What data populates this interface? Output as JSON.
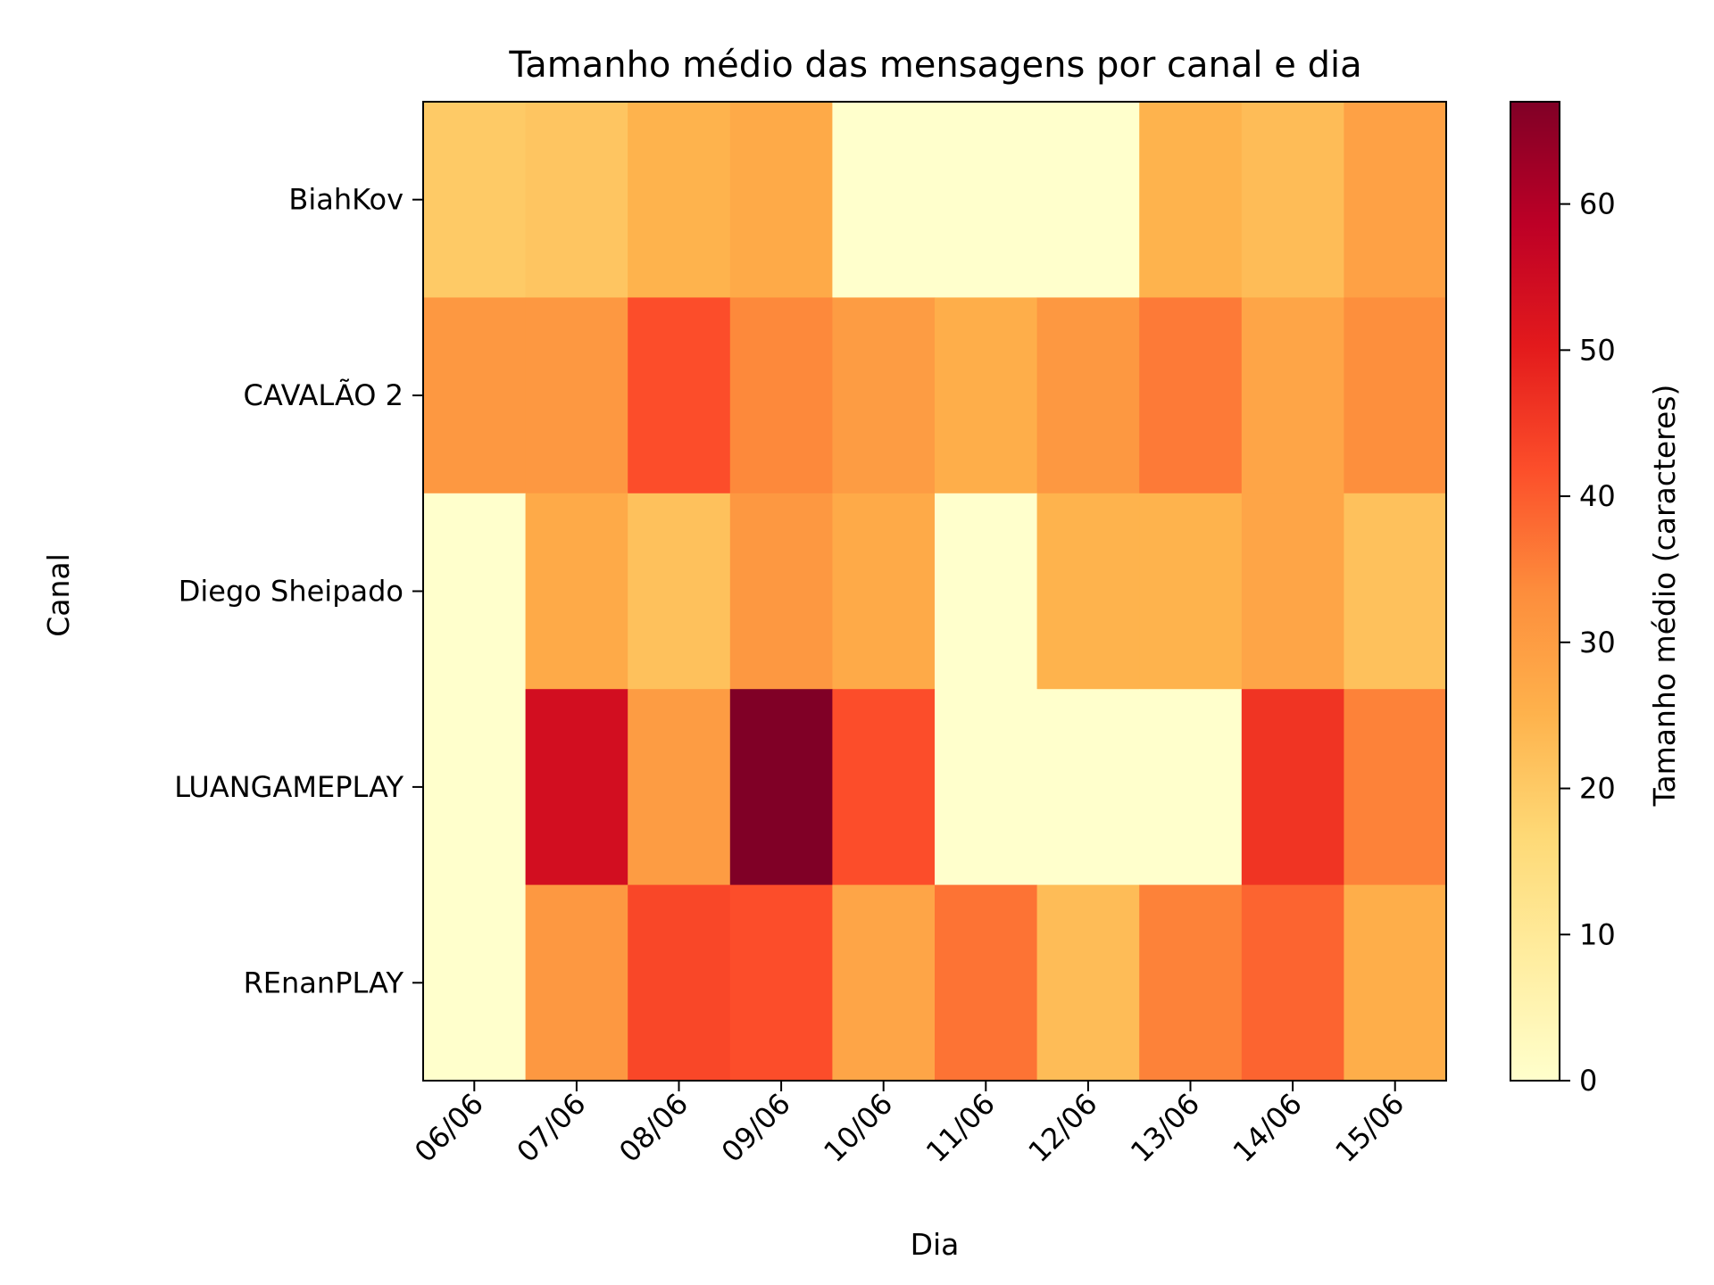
{
  "chart_data": {
    "type": "heatmap",
    "title": "Tamanho médio das mensagens por canal e dia",
    "xlabel": "Dia",
    "ylabel": "Canal",
    "x": [
      "06/06",
      "07/06",
      "08/06",
      "09/06",
      "10/06",
      "11/06",
      "12/06",
      "13/06",
      "14/06",
      "15/06"
    ],
    "y": [
      "BiahKov",
      "CAVALÃO 2",
      "Diego Sheipado",
      "LUANGAMEPLAY",
      "REnanPLAY"
    ],
    "values": [
      [
        20,
        21,
        25,
        27,
        0,
        0,
        0,
        25,
        23,
        29
      ],
      [
        31,
        31,
        42,
        34,
        30,
        26,
        31,
        36,
        28,
        33
      ],
      [
        0,
        27,
        22,
        31,
        27,
        0,
        25,
        25,
        28,
        22
      ],
      [
        0,
        54,
        30,
        67,
        42,
        0,
        0,
        0,
        46,
        35
      ],
      [
        0,
        31,
        43,
        42,
        28,
        37,
        23,
        35,
        39,
        26
      ]
    ],
    "colorbar": {
      "label": "Tamanho médio (caracteres)",
      "range": [
        0,
        67
      ],
      "ticks": [
        0,
        10,
        20,
        30,
        40,
        50,
        60
      ],
      "colormap": "YlOrRd"
    }
  }
}
